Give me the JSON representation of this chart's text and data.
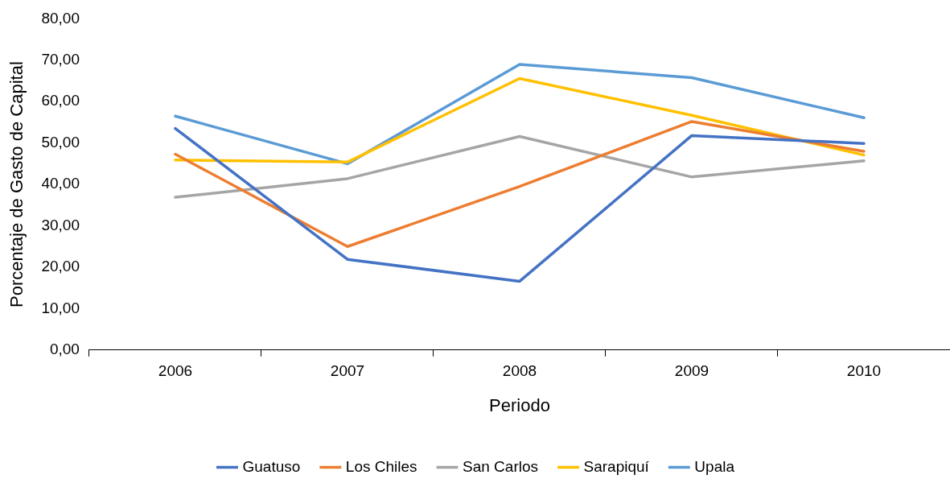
{
  "chart_data": {
    "type": "line",
    "xlabel": "Periodo",
    "ylabel": "Porcentaje de Gasto de Capital",
    "categories": [
      "2006",
      "2007",
      "2008",
      "2009",
      "2010"
    ],
    "ylim": [
      0,
      80
    ],
    "yticks": [
      {
        "value": 0,
        "label": "0,00"
      },
      {
        "value": 10,
        "label": "10,00"
      },
      {
        "value": 20,
        "label": "20,00"
      },
      {
        "value": 30,
        "label": "30,00"
      },
      {
        "value": 40,
        "label": "40,00"
      },
      {
        "value": 50,
        "label": "50,00"
      },
      {
        "value": 60,
        "label": "60,00"
      },
      {
        "value": 70,
        "label": "70,00"
      },
      {
        "value": 80,
        "label": "80,00"
      }
    ],
    "grid": false,
    "legend": "bottom",
    "marker": "none",
    "line_style": "solid",
    "series": [
      {
        "name": "Guatuso",
        "color": "#4472c4",
        "values": [
          53.5,
          21.9,
          16.6,
          51.8,
          49.9
        ]
      },
      {
        "name": "Los Chiles",
        "color": "#ed7d31",
        "values": [
          47.3,
          25.0,
          39.5,
          55.2,
          48.0
        ]
      },
      {
        "name": "San Carlos",
        "color": "#a5a5a5",
        "values": [
          36.9,
          41.4,
          51.6,
          41.8,
          45.7
        ]
      },
      {
        "name": "Sarapiquí",
        "color": "#ffc000",
        "values": [
          45.9,
          45.4,
          65.6,
          56.7,
          47.1
        ]
      },
      {
        "name": "Upala",
        "color": "#5b9bd5",
        "values": [
          56.5,
          45.0,
          69.0,
          65.8,
          56.1
        ]
      }
    ]
  }
}
